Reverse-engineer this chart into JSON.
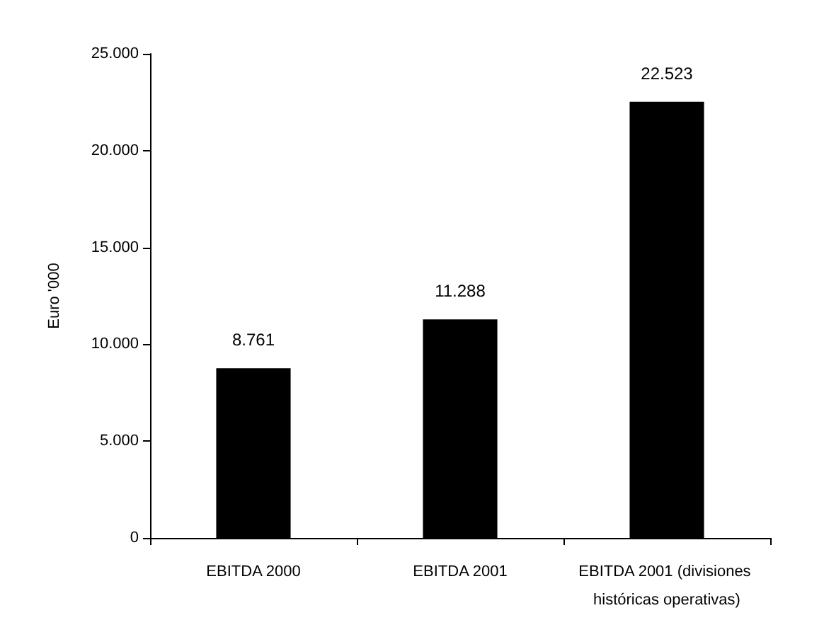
{
  "chart_data": {
    "type": "bar",
    "ylabel": "Euro '000",
    "categories": [
      "EBITDA 2000",
      "EBITDA 2001",
      "EBITDA 2001 (divisiones históricas operativas)"
    ],
    "values": [
      8761,
      11288,
      22523
    ],
    "color": "#000000",
    "value_labels": [
      "8.761",
      "11.288",
      "22.523"
    ],
    "ylim": [
      0,
      25000
    ],
    "yticks": [
      {
        "value": 0,
        "label": "0"
      },
      {
        "value": 5000,
        "label": "5.000"
      },
      {
        "value": 10000,
        "label": "10.000"
      },
      {
        "value": 15000,
        "label": "15.000"
      },
      {
        "value": 20000,
        "label": "20.000"
      },
      {
        "value": 25000,
        "label": "25.000"
      }
    ],
    "grid": false
  }
}
